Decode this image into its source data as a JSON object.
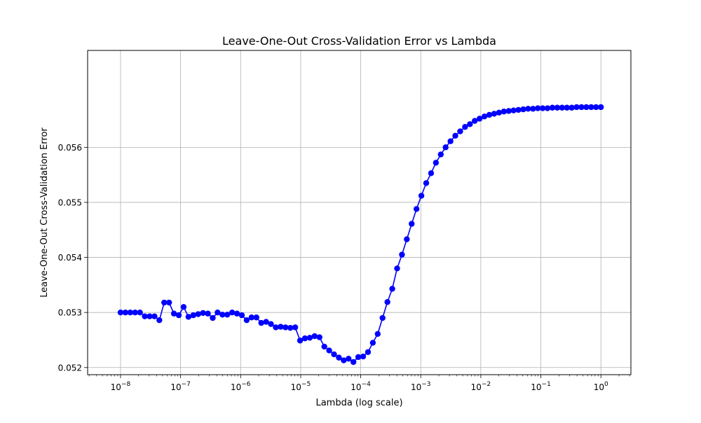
{
  "chart_data": {
    "type": "line",
    "title": "Leave-One-Out Cross-Validation Error vs Lambda",
    "xlabel": "Lambda (log scale)",
    "ylabel": "Leave-One-Out Cross-Validation Error",
    "x_scale": "log",
    "xlim": [
      2.83e-09,
      3.16
    ],
    "ylim": [
      0.05187,
      0.05776
    ],
    "grid": true,
    "x_ticks": [
      {
        "value": 1e-08,
        "base": "10",
        "exp": "−8"
      },
      {
        "value": 1e-07,
        "base": "10",
        "exp": "−7"
      },
      {
        "value": 1e-06,
        "base": "10",
        "exp": "−6"
      },
      {
        "value": 1e-05,
        "base": "10",
        "exp": "−5"
      },
      {
        "value": 0.0001,
        "base": "10",
        "exp": "−4"
      },
      {
        "value": 0.001,
        "base": "10",
        "exp": "−3"
      },
      {
        "value": 0.01,
        "base": "10",
        "exp": "−2"
      },
      {
        "value": 0.1,
        "base": "10",
        "exp": "−1"
      },
      {
        "value": 1,
        "base": "10",
        "exp": "0"
      }
    ],
    "y_ticks": [
      {
        "value": 0.052,
        "label": "0.052"
      },
      {
        "value": 0.053,
        "label": "0.053"
      },
      {
        "value": 0.054,
        "label": "0.054"
      },
      {
        "value": 0.055,
        "label": "0.055"
      },
      {
        "value": 0.056,
        "label": "0.056"
      }
    ],
    "colors": {
      "line": "#0000ff",
      "marker": "#0000ff",
      "grid": "#b0b0b0"
    },
    "series": [
      {
        "marker": "circle",
        "x_log10_start": -8,
        "x_log10_end": 0,
        "values": [
          0.053,
          0.053,
          0.053,
          0.053,
          0.053,
          0.05293,
          0.05293,
          0.05293,
          0.05286,
          0.05318,
          0.05318,
          0.05298,
          0.05295,
          0.0531,
          0.05292,
          0.05295,
          0.05297,
          0.05299,
          0.05298,
          0.0529,
          0.053,
          0.05296,
          0.05296,
          0.053,
          0.05298,
          0.05295,
          0.05286,
          0.05291,
          0.05291,
          0.05281,
          0.05283,
          0.05279,
          0.05273,
          0.05274,
          0.05273,
          0.05272,
          0.05273,
          0.05249,
          0.05253,
          0.05254,
          0.05257,
          0.05255,
          0.05238,
          0.05231,
          0.05224,
          0.05218,
          0.05213,
          0.05216,
          0.0521,
          0.05219,
          0.0522,
          0.05228,
          0.05245,
          0.05261,
          0.0529,
          0.05319,
          0.05343,
          0.0538,
          0.05405,
          0.05433,
          0.05461,
          0.05488,
          0.05512,
          0.05535,
          0.05553,
          0.05572,
          0.05587,
          0.056,
          0.05611,
          0.05621,
          0.05629,
          0.05637,
          0.05642,
          0.05648,
          0.05652,
          0.05656,
          0.05659,
          0.05661,
          0.05663,
          0.05665,
          0.05666,
          0.05667,
          0.05668,
          0.05669,
          0.0567,
          0.0567,
          0.05671,
          0.05671,
          0.05671,
          0.05672,
          0.05672,
          0.05672,
          0.05672,
          0.05672,
          0.05673,
          0.05673,
          0.05673,
          0.05673,
          0.05673,
          0.05673
        ]
      }
    ]
  }
}
